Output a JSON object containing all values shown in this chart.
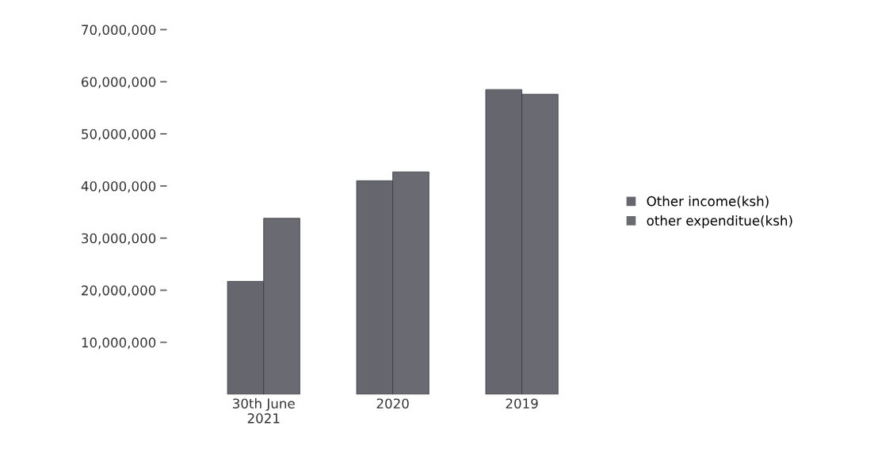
{
  "chart_data": {
    "type": "bar",
    "categories": [
      "30th June\n2021",
      "2020",
      "2019"
    ],
    "series": [
      {
        "name": "Other income(ksh)",
        "color": "#66666e",
        "values": [
          21700000,
          41000000,
          58500000
        ]
      },
      {
        "name": "other expenditue(ksh)",
        "color": "#6a6a72",
        "values": [
          33800000,
          42700000,
          57600000
        ]
      }
    ],
    "ylim": [
      0,
      70000000
    ],
    "yticks": [
      {
        "value": 10000000,
        "label": "10,000,000"
      },
      {
        "value": 20000000,
        "label": "20,000,000"
      },
      {
        "value": 30000000,
        "label": "30,000,000"
      },
      {
        "value": 40000000,
        "label": "40,000,000"
      },
      {
        "value": 50000000,
        "label": "50,000,000"
      },
      {
        "value": 60000000,
        "label": "60,000,000"
      },
      {
        "value": 70000000,
        "label": "70,000,000"
      }
    ],
    "grid": false,
    "legend": "right"
  }
}
